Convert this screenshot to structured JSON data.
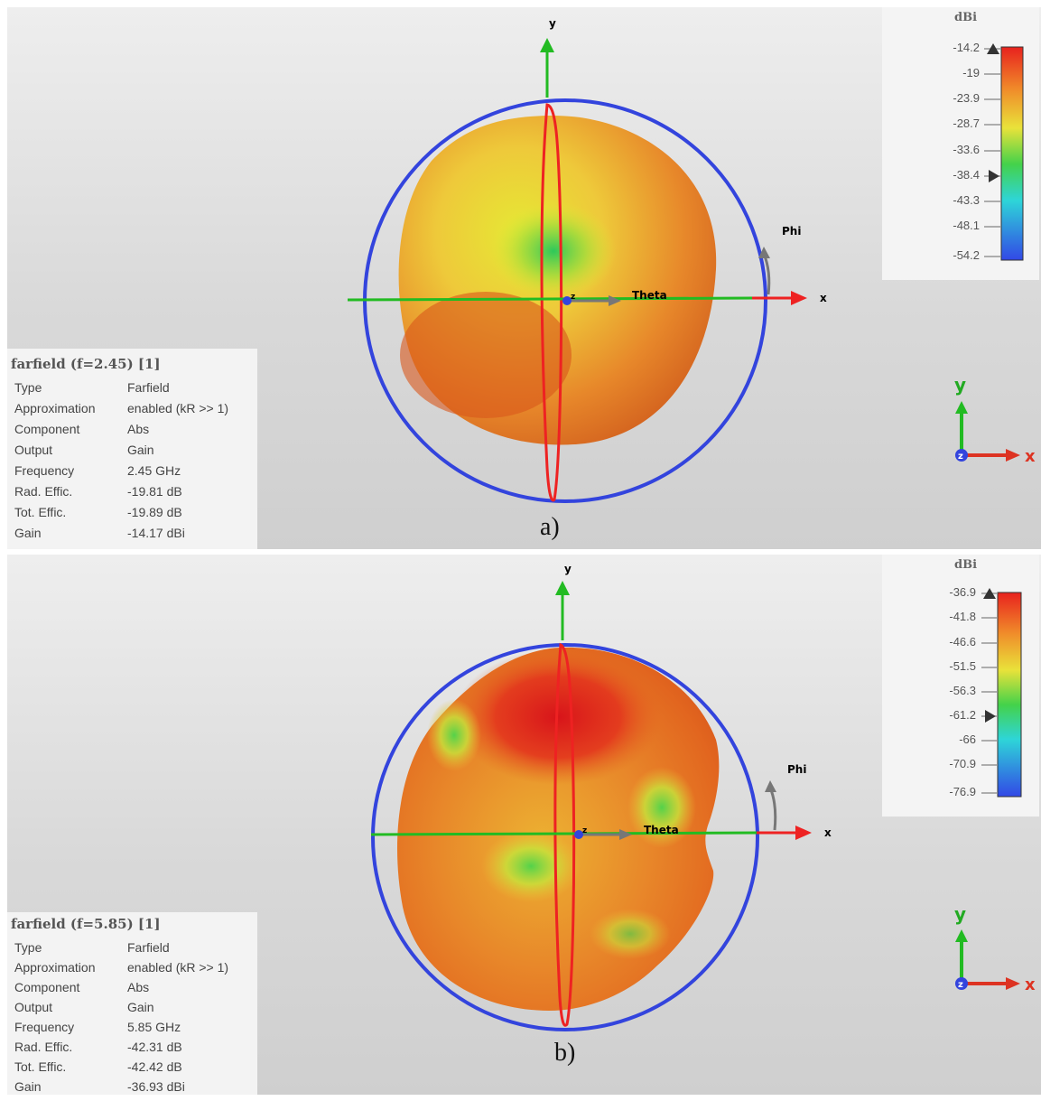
{
  "panels": [
    {
      "caption": "a)",
      "info": {
        "title": "farfield (f=2.45) [1]",
        "rows": [
          {
            "k": "Type",
            "v": "Farfield"
          },
          {
            "k": "Approximation",
            "v": "enabled (kR >> 1)"
          },
          {
            "k": "Component",
            "v": "Abs"
          },
          {
            "k": "Output",
            "v": "Gain"
          },
          {
            "k": "Frequency",
            "v": "2.45 GHz"
          },
          {
            "k": "Rad. Effic.",
            "v": "-19.81 dB"
          },
          {
            "k": "Tot. Effic.",
            "v": "-19.89 dB"
          },
          {
            "k": "Gain",
            "v": "-14.17 dBi"
          }
        ]
      },
      "legend": {
        "unit": "dBi",
        "ticks": [
          "-14.2",
          "-19",
          "-23.9",
          "-28.7",
          "-33.6",
          "-38.4",
          "-43.3",
          "-48.1",
          "-54.2"
        ]
      },
      "axes": {
        "y": "y",
        "x": "x",
        "z": "z",
        "theta": "Theta",
        "phi": "Phi"
      }
    },
    {
      "caption": "b)",
      "info": {
        "title": "farfield (f=5.85) [1]",
        "rows": [
          {
            "k": "Type",
            "v": "Farfield"
          },
          {
            "k": "Approximation",
            "v": "enabled (kR >> 1)"
          },
          {
            "k": "Component",
            "v": "Abs"
          },
          {
            "k": "Output",
            "v": "Gain"
          },
          {
            "k": "Frequency",
            "v": "5.85 GHz"
          },
          {
            "k": "Rad. Effic.",
            "v": "-42.31 dB"
          },
          {
            "k": "Tot. Effic.",
            "v": "-42.42 dB"
          },
          {
            "k": "Gain",
            "v": "-36.93 dBi"
          }
        ]
      },
      "legend": {
        "unit": "dBi",
        "ticks": [
          "-36.9",
          "-41.8",
          "-46.6",
          "-51.5",
          "-56.3",
          "-61.2",
          "-66",
          "-70.9",
          "-76.9"
        ]
      },
      "axes": {
        "y": "y",
        "x": "x",
        "z": "z",
        "theta": "Theta",
        "phi": "Phi"
      }
    }
  ],
  "colors": {
    "ring": "#3344dd",
    "axis_green": "#22bb22",
    "axis_red": "#ee2222",
    "arrow_gray": "#777777"
  }
}
